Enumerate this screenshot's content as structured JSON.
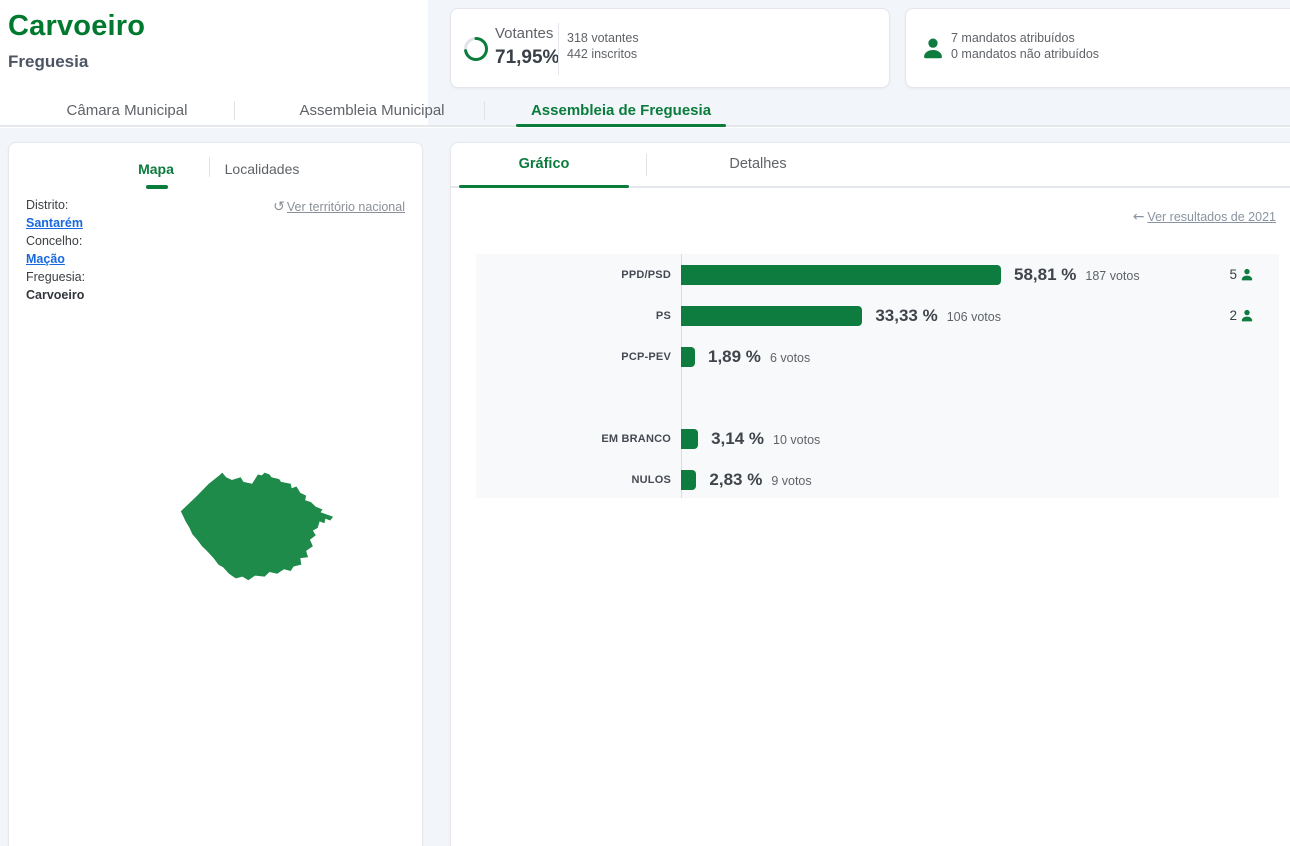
{
  "header": {
    "title": "Carvoeiro",
    "subtitle": "Freguesia",
    "turnout": {
      "label": "Votantes",
      "percent": "71,95%",
      "percent_value": 71.95,
      "voters": "318 votantes",
      "registered": "442 inscritos"
    },
    "mandates": {
      "attributed": "7 mandatos atribuídos",
      "not_attributed": "0 mandatos não atribuídos"
    }
  },
  "main_tabs": {
    "camara": "Câmara Municipal",
    "assembleia_municipal": "Assembleia Municipal",
    "assembleia_freguesia": "Assembleia de Freguesia"
  },
  "left_panel": {
    "tab_mapa": "Mapa",
    "tab_localidades": "Localidades",
    "distrito_label": "Distrito:",
    "distrito_value": "Santarém",
    "concelho_label": "Concelho:",
    "concelho_value": "Mação",
    "freguesia_label": "Freguesia:",
    "freguesia_value": "Carvoeiro",
    "national_link": "Ver território nacional"
  },
  "right_panel": {
    "tab_grafico": "Gráfico",
    "tab_detalhes": "Detalhes",
    "back_link": "Ver resultados de 2021"
  },
  "colors": {
    "brand_green": "#0a7c3c",
    "bar_green": "#0e7c3e",
    "map_green": "#1e8b4b",
    "link_blue": "#1769e0"
  },
  "chart_data": {
    "type": "bar",
    "orientation": "horizontal",
    "title": "",
    "xlabel": "",
    "ylabel": "",
    "xlim": [
      0,
      60
    ],
    "grid": false,
    "legend": false,
    "categories": [
      "PPD/PSD",
      "PS",
      "PCP-PEV",
      "EM BRANCO",
      "NULOS"
    ],
    "series": [
      {
        "name": "percentagem",
        "values": [
          58.81,
          33.33,
          1.89,
          3.14,
          2.83
        ]
      },
      {
        "name": "votos",
        "values": [
          187,
          106,
          6,
          10,
          9
        ]
      },
      {
        "name": "mandatos",
        "values": [
          5,
          2,
          null,
          null,
          null
        ]
      }
    ],
    "rows": [
      {
        "label": "PPD/PSD",
        "percent": 58.81,
        "percent_label": "58,81 %",
        "votes_label": "187 votos",
        "mandates": 5,
        "gap_before": false
      },
      {
        "label": "PS",
        "percent": 33.33,
        "percent_label": "33,33 %",
        "votes_label": "106 votos",
        "mandates": 2,
        "gap_before": false
      },
      {
        "label": "PCP-PEV",
        "percent": 1.89,
        "percent_label": "1,89 %",
        "votes_label": "6 votos",
        "mandates": null,
        "gap_before": false
      },
      {
        "label": "EM BRANCO",
        "percent": 3.14,
        "percent_label": "3,14 %",
        "votes_label": "10 votos",
        "mandates": null,
        "gap_before": true
      },
      {
        "label": "NULOS",
        "percent": 2.83,
        "percent_label": "2,83 %",
        "votes_label": "9 votos",
        "mandates": null,
        "gap_before": false
      }
    ]
  }
}
